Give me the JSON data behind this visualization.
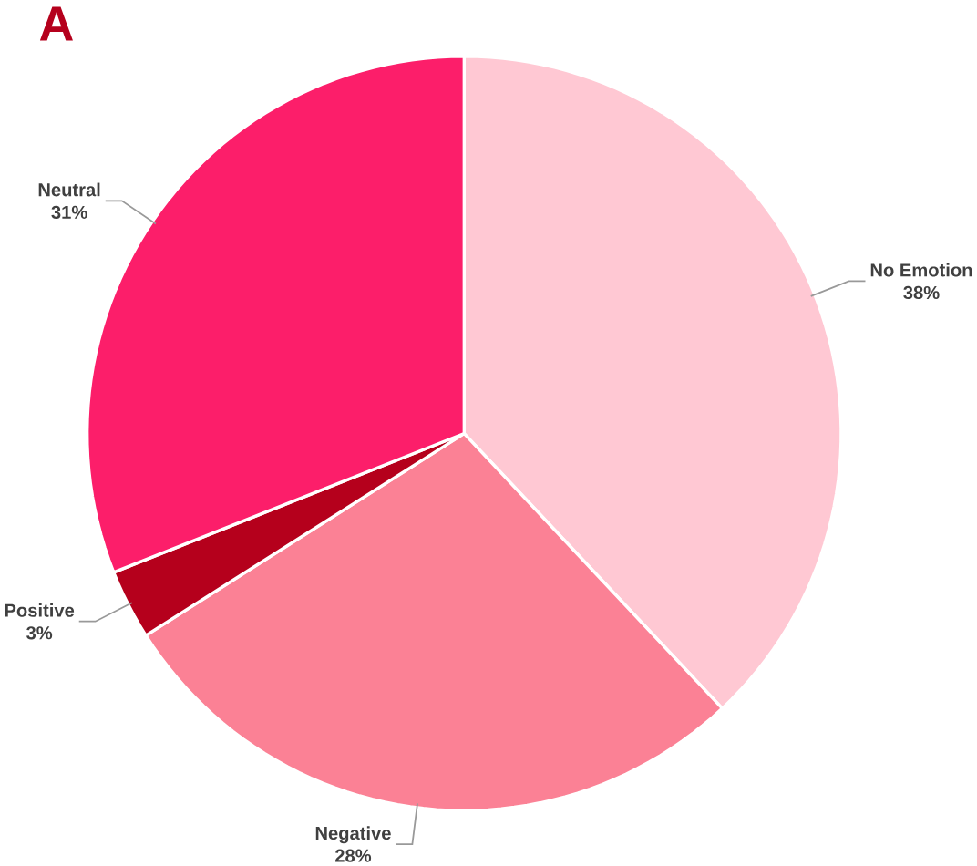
{
  "chart_data": {
    "type": "pie",
    "title": "A",
    "categories": [
      "No Emotion",
      "Negative",
      "Positive",
      "Neutral"
    ],
    "values": [
      38,
      28,
      3,
      31
    ],
    "value_labels": [
      "38%",
      "28%",
      "3%",
      "31%"
    ],
    "colors": [
      "#ffc8d3",
      "#fb8195",
      "#b5001c",
      "#fc1e6a"
    ]
  }
}
